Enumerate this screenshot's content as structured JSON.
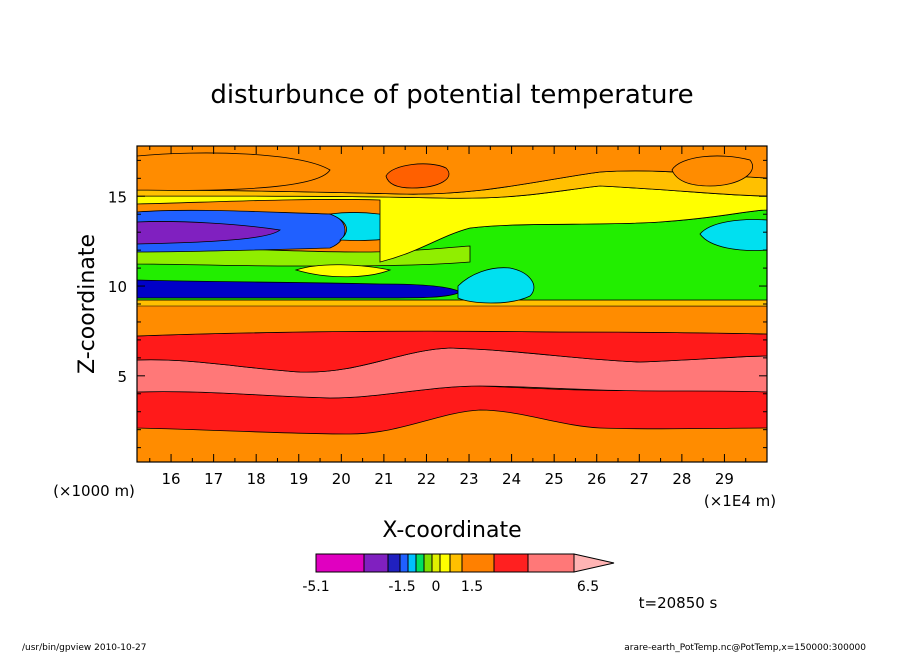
{
  "chart_data": {
    "type": "heatmap",
    "title": "disturbunce of potential temperature",
    "xlabel": "X-coordinate",
    "ylabel": "Z-coordinate",
    "x_unit_label": "(×1E4 m)",
    "y_unit_label": "(×1000 m)",
    "xlim": [
      15.2,
      30.0
    ],
    "ylim": [
      0.2,
      17.8
    ],
    "x_ticks": [
      "16",
      "17",
      "18",
      "19",
      "20",
      "21",
      "22",
      "23",
      "24",
      "25",
      "26",
      "27",
      "28",
      "29"
    ],
    "y_ticks": [
      "5",
      "10",
      "15"
    ],
    "colorbar": {
      "labels": [
        "-5.1",
        "-1.5",
        "0",
        "1.5",
        "6.5"
      ],
      "levels": [
        -5.1,
        -4.1,
        -3.1,
        -2.5,
        -2.1,
        -1.5,
        -1.0,
        -0.5,
        0,
        0.5,
        1.0,
        1.5,
        3.0,
        4.5,
        6.5
      ],
      "colors": [
        "#e000c0",
        "#8020c0",
        "#2020c0",
        "#2060ff",
        "#00c0ff",
        "#00e060",
        "#80e000",
        "#e0f000",
        "#ffff00",
        "#ffc000",
        "#ff8000",
        "#ff2020",
        "#ff7878",
        "#ffb4b4"
      ]
    },
    "layers": [
      {
        "z": [
          0.2,
          3.0
        ],
        "band": "orange"
      },
      {
        "z": [
          1.5,
          4.5
        ],
        "band": "red"
      },
      {
        "z": [
          3.0,
          6.5
        ],
        "band": "pink"
      },
      {
        "z": [
          5.5,
          7.0
        ],
        "band": "red"
      },
      {
        "z": [
          7.0,
          9.0
        ],
        "band": "orange"
      },
      {
        "z": [
          9.0,
          12.0
        ],
        "band": "green"
      },
      {
        "z": [
          9.4,
          10.2
        ],
        "band": "blue"
      },
      {
        "z": [
          12.0,
          14.0
        ],
        "band": "purple"
      },
      {
        "z": [
          14.0,
          17.8
        ],
        "band": "orange-yellow"
      }
    ],
    "time_label": "t=20850 s"
  },
  "footer": {
    "left": "/usr/bin/gpview  2010-10-27",
    "right": "arare-earth_PotTemp.nc@PotTemp,x=150000:300000"
  }
}
